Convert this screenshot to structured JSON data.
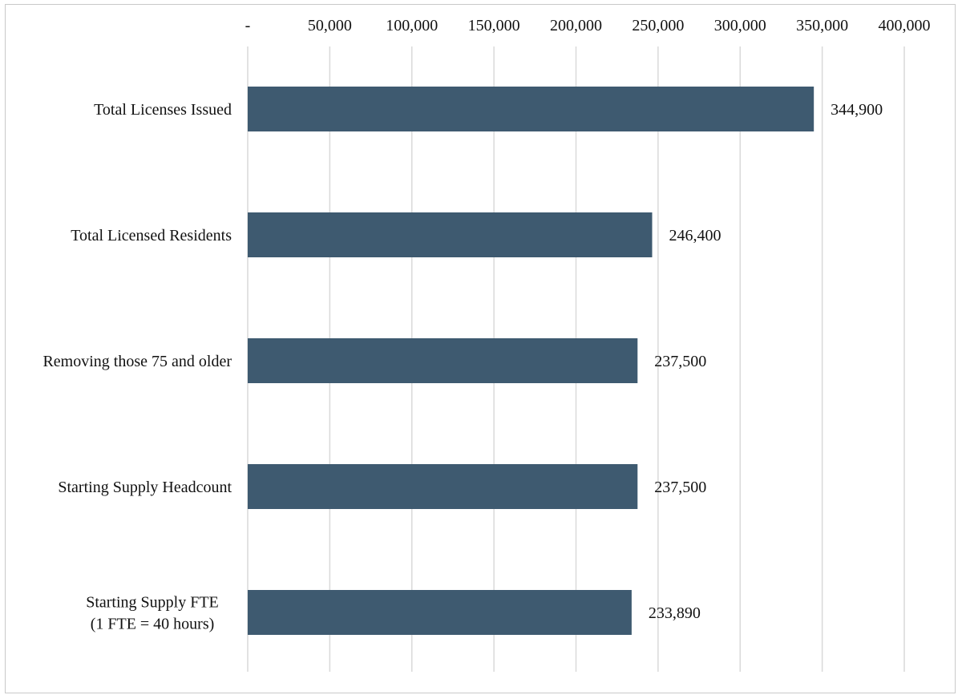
{
  "chart_data": {
    "type": "bar",
    "orientation": "horizontal",
    "categories": [
      "Total Licenses Issued",
      "Total Licensed Residents",
      "Removing those 75 and older",
      "Starting Supply Headcount",
      "Starting Supply FTE (1 FTE = 40 hours)"
    ],
    "category_lines": [
      [
        "Total Licenses Issued"
      ],
      [
        "Total Licensed Residents"
      ],
      [
        "Removing those 75 and older"
      ],
      [
        "Starting Supply Headcount"
      ],
      [
        "Starting Supply FTE",
        "(1 FTE = 40 hours)"
      ]
    ],
    "values": [
      344900,
      246400,
      237500,
      237500,
      233890
    ],
    "data_labels": [
      "344,900",
      "246,400",
      "237,500",
      "237,500",
      "233,890"
    ],
    "xlim": [
      0,
      400000
    ],
    "x_ticks": [
      0,
      50000,
      100000,
      150000,
      200000,
      250000,
      300000,
      350000,
      400000
    ],
    "x_tick_labels": [
      "-",
      "50,000",
      "100,000",
      "150,000",
      "200,000",
      "250,000",
      "300,000",
      "350,000",
      "400,000"
    ],
    "x_axis_position": "top",
    "grid": "vertical",
    "legend": "none",
    "title": "",
    "xlabel": "",
    "ylabel": "",
    "colors": {
      "bar": "#3e5a70",
      "grid": "#d9d9d9",
      "frame": "#c9c9c9"
    }
  }
}
